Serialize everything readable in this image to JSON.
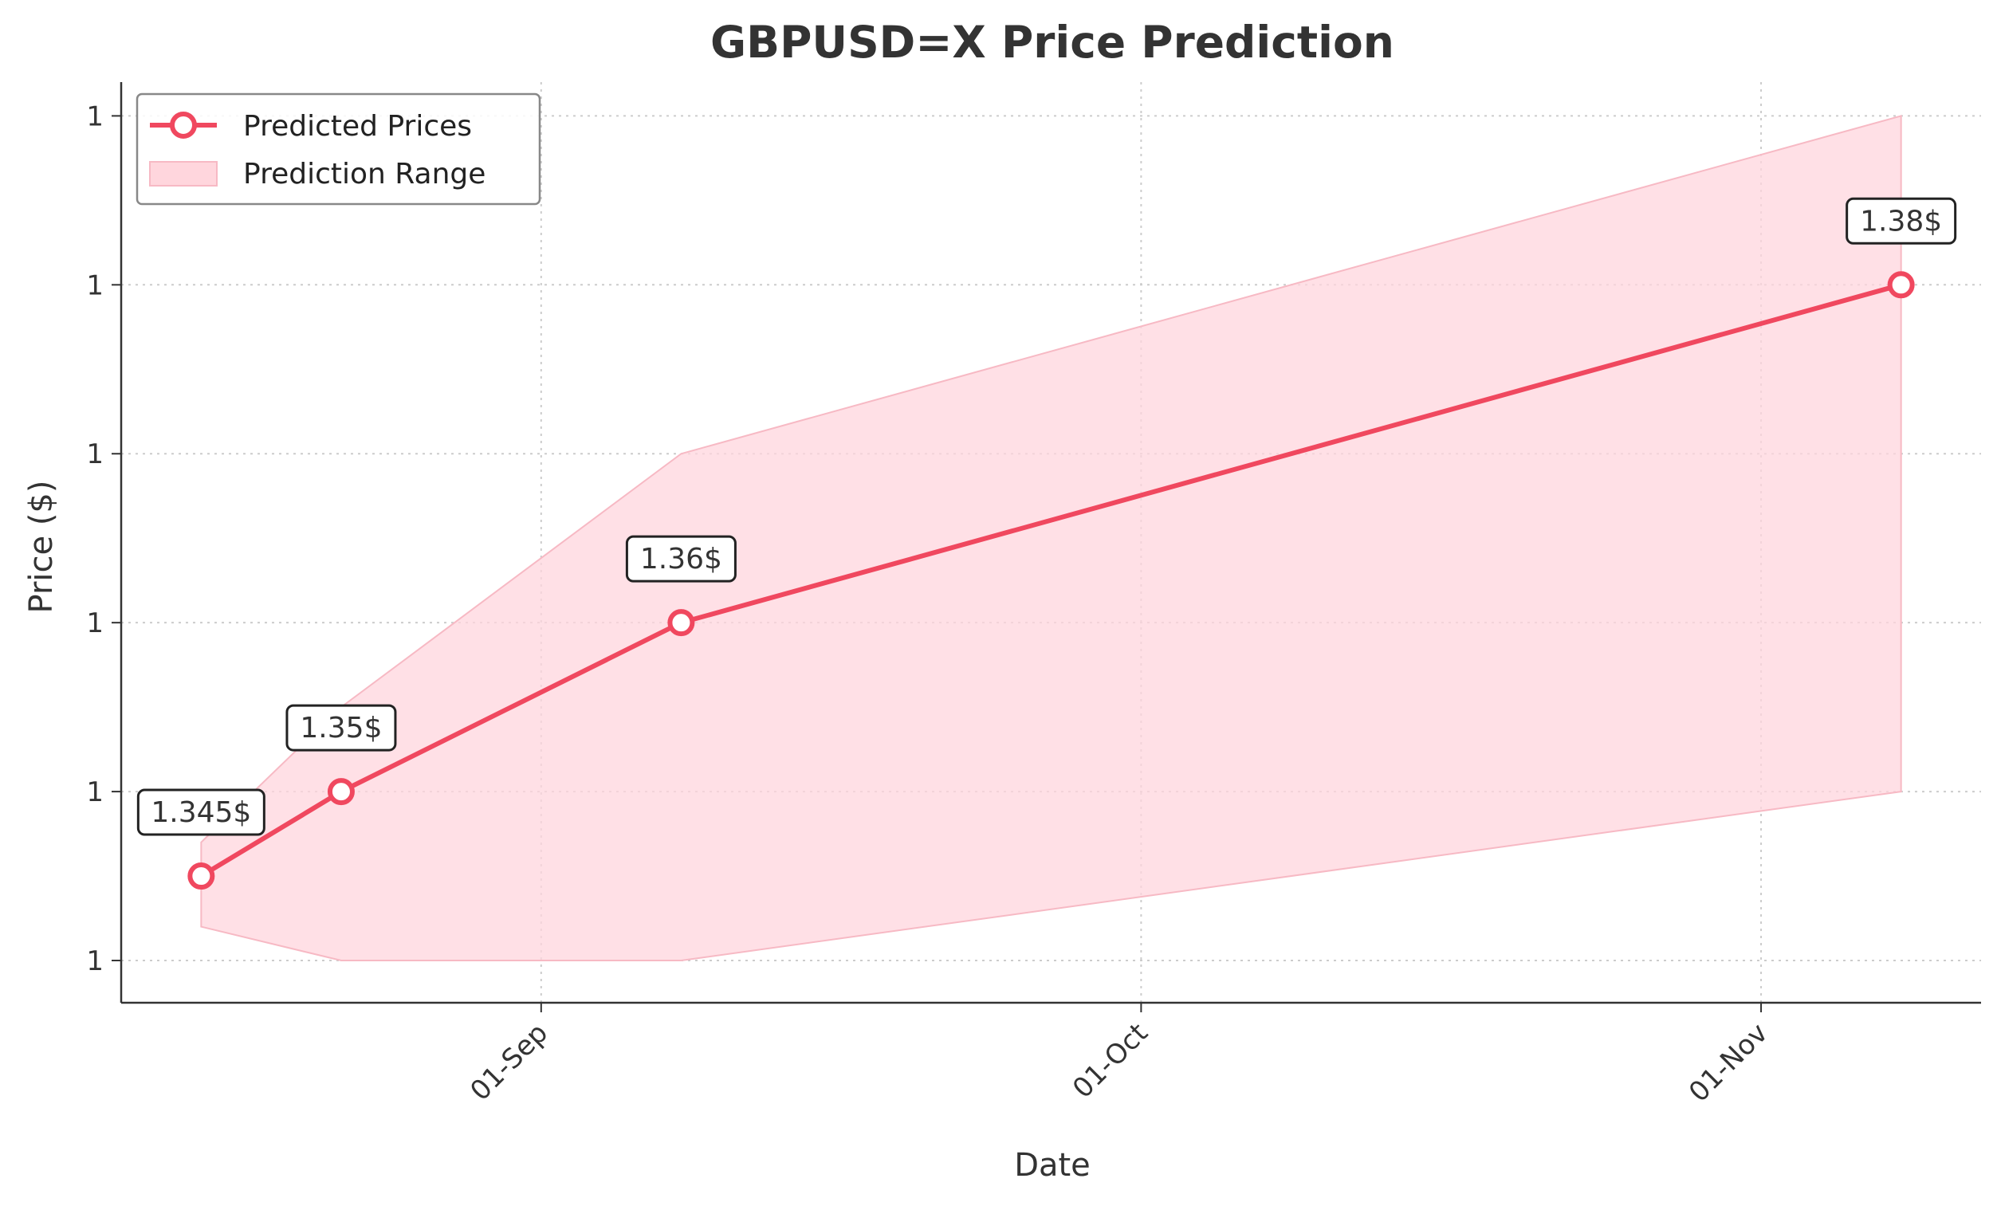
{
  "chart_data": {
    "type": "line",
    "title": "GBPUSD=X Price Prediction",
    "xlabel": "Date",
    "ylabel": "Price ($)",
    "x_ticks": [
      {
        "label": "01-Sep",
        "date": "2025-09-01"
      },
      {
        "label": "01-Oct",
        "date": "2025-10-01"
      },
      {
        "label": "01-Nov",
        "date": "2025-11-01"
      }
    ],
    "y_ticks": [
      {
        "label": "1",
        "value": 1.34
      },
      {
        "label": "1",
        "value": 1.35
      },
      {
        "label": "1",
        "value": 1.36
      },
      {
        "label": "1",
        "value": 1.37
      },
      {
        "label": "1",
        "value": 1.38
      },
      {
        "label": "1",
        "value": 1.39
      }
    ],
    "xlim": [
      "2025-08-11",
      "2025-11-12"
    ],
    "ylim": [
      1.3375,
      1.392
    ],
    "grid": true,
    "legend_position": "top-left",
    "series": [
      {
        "name": "Predicted Prices",
        "color": "#f0485f",
        "points": [
          {
            "date": "2025-08-15",
            "value": 1.345,
            "label": "1.345$"
          },
          {
            "date": "2025-08-22",
            "value": 1.35,
            "label": "1.35$"
          },
          {
            "date": "2025-09-08",
            "value": 1.36,
            "label": "1.36$"
          },
          {
            "date": "2025-11-08",
            "value": 1.38,
            "label": "1.38$"
          }
        ]
      }
    ],
    "range": {
      "name": "Prediction Range",
      "color": "#ffd6dd",
      "points": [
        {
          "date": "2025-08-15",
          "low": 1.342,
          "high": 1.347
        },
        {
          "date": "2025-08-22",
          "low": 1.34,
          "high": 1.355
        },
        {
          "date": "2025-09-08",
          "low": 1.34,
          "high": 1.37
        },
        {
          "date": "2025-11-08",
          "low": 1.35,
          "high": 1.39
        }
      ]
    }
  }
}
